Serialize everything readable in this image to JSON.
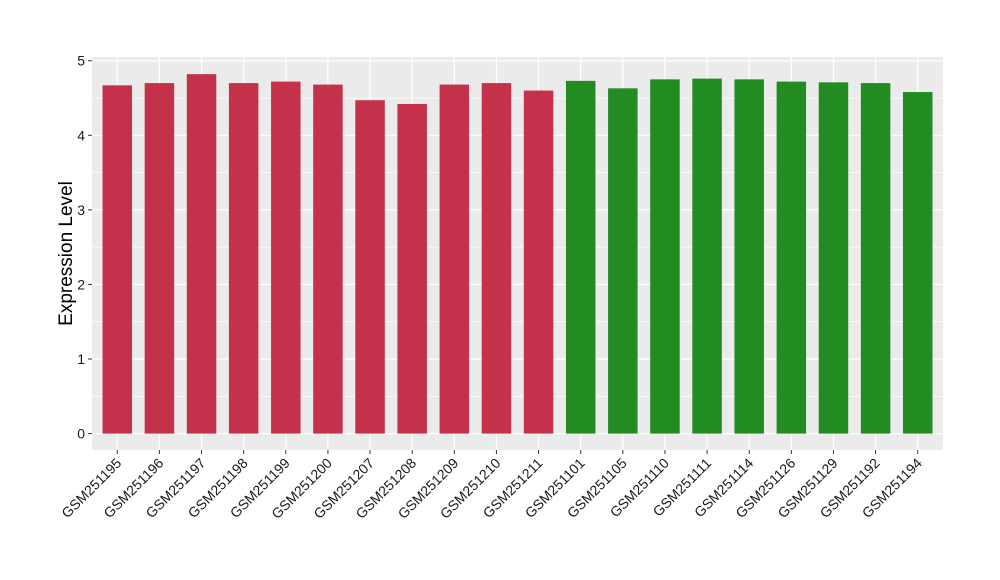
{
  "chart_data": {
    "type": "bar",
    "title": "",
    "xlabel": "",
    "ylabel": "Expression Level",
    "ylim": [
      -0.22,
      5.05
    ],
    "yticks": [
      0,
      1,
      2,
      3,
      4,
      5
    ],
    "ytick_labels": [
      "0",
      "1",
      "2",
      "3",
      "4",
      "5"
    ],
    "grid": true,
    "legend": "none",
    "panel_color": "#ebebeb",
    "grid_color": "#ffffff",
    "categories": [
      "GSM251195",
      "GSM251196",
      "GSM251197",
      "GSM251198",
      "GSM251199",
      "GSM251200",
      "GSM251207",
      "GSM251208",
      "GSM251209",
      "GSM251210",
      "GSM251211",
      "GSM251101",
      "GSM251105",
      "GSM251110",
      "GSM251111",
      "GSM251114",
      "GSM251126",
      "GSM251129",
      "GSM251192",
      "GSM251194"
    ],
    "values": [
      4.67,
      4.7,
      4.82,
      4.7,
      4.72,
      4.68,
      4.47,
      4.42,
      4.68,
      4.7,
      4.6,
      4.73,
      4.63,
      4.75,
      4.76,
      4.75,
      4.72,
      4.71,
      4.7,
      4.58
    ],
    "colors": [
      "#c3314a",
      "#c3314a",
      "#c3314a",
      "#c3314a",
      "#c3314a",
      "#c3314a",
      "#c3314a",
      "#c3314a",
      "#c3314a",
      "#c3314a",
      "#c3314a",
      "#228b22",
      "#228b22",
      "#228b22",
      "#228b22",
      "#228b22",
      "#228b22",
      "#228b22",
      "#228b22",
      "#228b22"
    ]
  }
}
